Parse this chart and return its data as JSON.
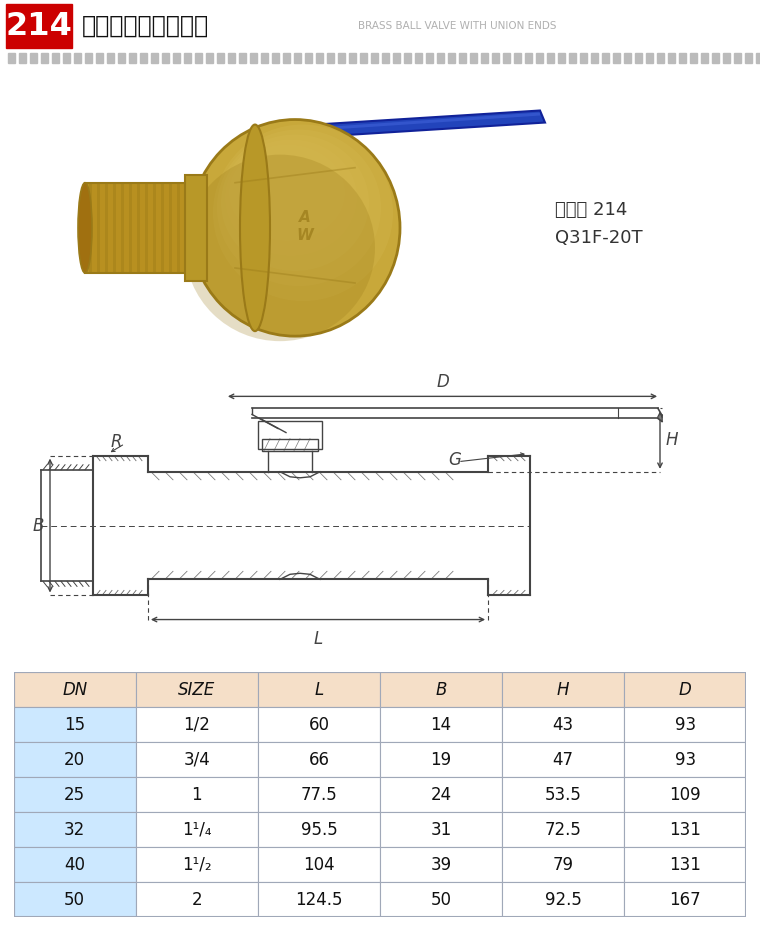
{
  "title_number": "214",
  "title_cn": "黄铜球阀（足通口）",
  "title_en": "BRASS BALL VALVE WITH UNION ENDS",
  "product_code": "货号： 214",
  "model": "Q31F-20T",
  "table_headers": [
    "DN",
    "SIZE",
    "L",
    "B",
    "H",
    "D"
  ],
  "table_data": [
    [
      "15",
      "1/2",
      "60",
      "14",
      "43",
      "93"
    ],
    [
      "20",
      "3/4",
      "66",
      "19",
      "47",
      "93"
    ],
    [
      "25",
      "1",
      "77.5",
      "24",
      "53.5",
      "109"
    ],
    [
      "32",
      "1¹/₄",
      "95.5",
      "31",
      "72.5",
      "131"
    ],
    [
      "40",
      "1¹/₂",
      "104",
      "39",
      "79",
      "131"
    ],
    [
      "50",
      "2",
      "124.5",
      "50",
      "92.5",
      "167"
    ]
  ],
  "header_bg": "#cc0000",
  "header_text_color": "#ffffff",
  "table_header_bg": "#f5dfc8",
  "row_odd_bg": "#cce8ff",
  "row_even_bg": "#ffffff",
  "table_border_color": "#a0a8b8",
  "dotted_color": "#aaaaaa",
  "lc": "#444444",
  "bg_color": "#ffffff",
  "brass_main": "#c8a83a",
  "brass_dark": "#9a7a18",
  "brass_light": "#e8d070",
  "brass_mid": "#b89828",
  "silver": "#c8c8c8",
  "silver_dark": "#909090",
  "blue_handle": "#2244bb",
  "blue_handle_dark": "#112299"
}
